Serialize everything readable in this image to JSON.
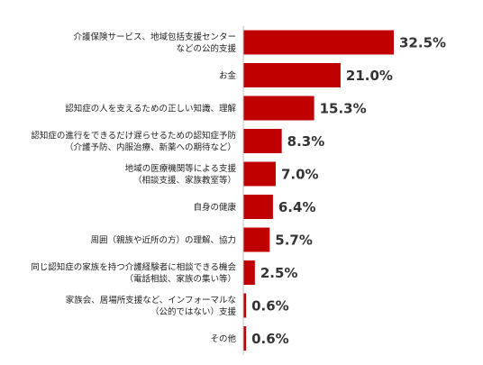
{
  "colors": {
    "bar": "#c00000",
    "axis": "#bfbfbf",
    "label_text": "#222222",
    "value_text": "#333333",
    "background": "#ffffff"
  },
  "chart_data": {
    "type": "bar",
    "orientation": "horizontal",
    "title": "",
    "xlabel": "",
    "ylabel": "",
    "grid": false,
    "legend": "none",
    "xlim": [
      0,
      35
    ],
    "unit": "%",
    "categories": [
      [
        "介護保険サービス、地域包括支援センター",
        "などの公的支援"
      ],
      [
        "お金"
      ],
      [
        "認知症の人を支えるための正しい知識、理解"
      ],
      [
        "認知症の進行をできるだけ遅らせるための認知症予防",
        "（介護予防、内服治療、新薬への期待など）"
      ],
      [
        "地域の医療機関等による支援",
        "（相談支援、家族教室等）"
      ],
      [
        "自身の健康"
      ],
      [
        "周囲（親族や近所の方）の理解、協力"
      ],
      [
        "同じ認知症の家族を持つ介護経験者に相談できる機会",
        "（電話相談、家族の集い等）"
      ],
      [
        "家族会、居場所支援など、インフォーマルな",
        "（公的ではない）支援"
      ],
      [
        "その他"
      ]
    ],
    "values": [
      32.5,
      21.0,
      15.3,
      8.3,
      7.0,
      6.4,
      5.7,
      2.5,
      0.6,
      0.6
    ],
    "value_labels": [
      "32.5%",
      "21.0%",
      "15.3%",
      "8.3%",
      "7.0%",
      "6.4%",
      "5.7%",
      "2.5%",
      "0.6%",
      "0.6%"
    ]
  }
}
